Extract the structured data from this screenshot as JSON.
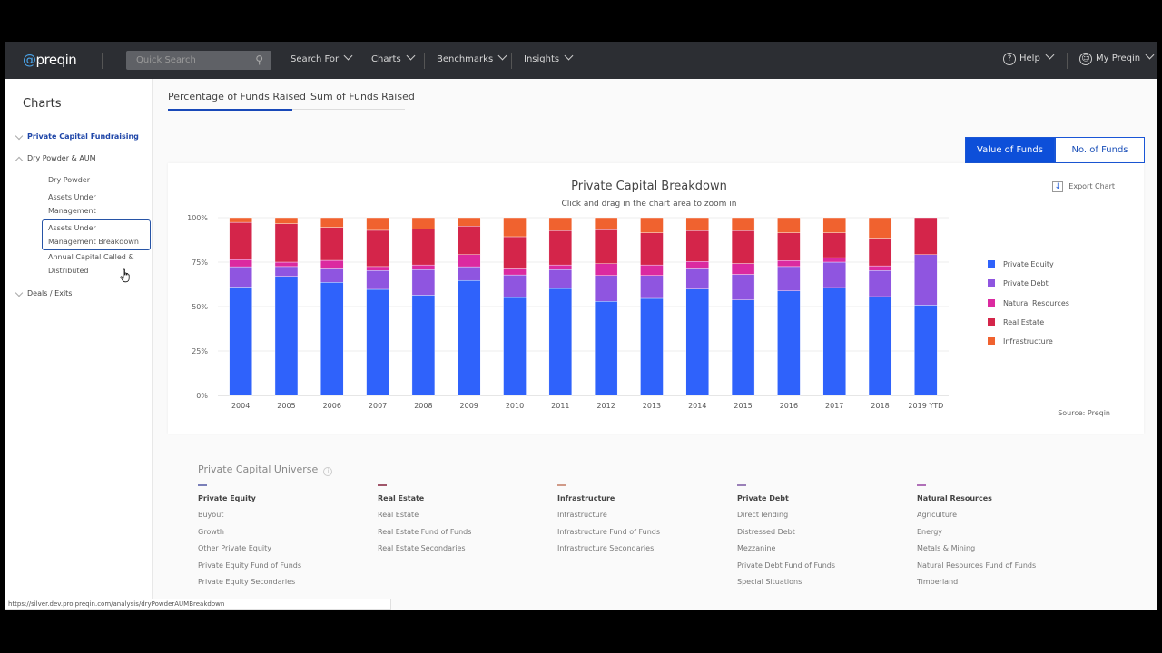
{
  "nav": {
    "logo": "preqin",
    "search_placeholder": "Quick Search",
    "items": [
      "Search For",
      "Charts",
      "Benchmarks",
      "Insights"
    ],
    "help": "Help",
    "account": "My Preqin"
  },
  "sidebar": {
    "title": "Charts",
    "groups": [
      {
        "label": "Private Capital Fundraising",
        "state": "collapsed",
        "active": true
      },
      {
        "label": "Dry Powder & AUM",
        "state": "expanded"
      },
      {
        "label": "Deals / Exits",
        "state": "collapsed"
      }
    ],
    "sub_items": [
      "Dry Powder",
      "Assets Under Management",
      "Assets Under Management Breakdown",
      "Annual Capital Called & Distributed"
    ],
    "selected": "Assets Under Management Breakdown"
  },
  "tabs": [
    "Percentage of Funds Raised",
    "Sum of Funds Raised"
  ],
  "toggle": {
    "on": "Value of Funds",
    "off": "No. of Funds"
  },
  "export": "Export Chart",
  "source": "Source: Preqin",
  "chart_data": {
    "type": "bar",
    "stacked": true,
    "title": "Private Capital Breakdown",
    "subtitle": "Click and drag in the chart area to zoom in",
    "categories": [
      "2004",
      "2005",
      "2006",
      "2007",
      "2008",
      "2009",
      "2010",
      "2011",
      "2012",
      "2013",
      "2014",
      "2015",
      "2016",
      "2017",
      "2018",
      "2019 YTD"
    ],
    "yticks": [
      "0%",
      "25%",
      "50%",
      "75%",
      "100%"
    ],
    "ylim": [
      0,
      100
    ],
    "grid": true,
    "legend": "right",
    "series": [
      {
        "name": "Private Equity",
        "color": "#2f62fb",
        "values": [
          61,
          67,
          63.6,
          59.7,
          56.4,
          64.7,
          55.1,
          60.2,
          52.9,
          54.6,
          59.8,
          53.7,
          58.8,
          60.7,
          55.6,
          50.8
        ]
      },
      {
        "name": "Private Debt",
        "color": "#8f55e0",
        "values": [
          11.4,
          5.5,
          7.6,
          10.6,
          14.4,
          7.7,
          12.7,
          10.6,
          14.6,
          12.9,
          11.4,
          14.4,
          13.7,
          14.3,
          14.7,
          28.4
        ]
      },
      {
        "name": "Natural Resources",
        "color": "#db2aa0",
        "values": [
          4,
          2.5,
          4.8,
          2.2,
          2.6,
          6.8,
          3.4,
          2.6,
          6.6,
          5.9,
          4.2,
          6.1,
          3.4,
          2.5,
          2.6,
          0
        ]
      },
      {
        "name": "Real Estate",
        "color": "#d4254a",
        "values": [
          21,
          21.6,
          18.6,
          20.4,
          20.2,
          16.1,
          18.1,
          19.3,
          19.1,
          18.1,
          17.3,
          18.5,
          15.6,
          14,
          15.6,
          20.8
        ]
      },
      {
        "name": "Infrastructure",
        "color": "#f0622f",
        "values": [
          2.6,
          3.4,
          5.4,
          7.1,
          6.4,
          4.7,
          10.7,
          7.3,
          6.8,
          8.5,
          7.3,
          7.3,
          8.5,
          8.5,
          11.5,
          0
        ]
      }
    ]
  },
  "universe": {
    "title": "Private Capital Universe",
    "columns": [
      {
        "heading": "Private Equity",
        "color": "#7a7fb8",
        "items": [
          "Buyout",
          "Growth",
          "Other Private Equity",
          "Private Equity Fund of Funds",
          "Private Equity Secondaries"
        ]
      },
      {
        "heading": "Real Estate",
        "color": "#a0566a",
        "items": [
          "Real Estate",
          "Real Estate Fund of Funds",
          "Real Estate Secondaries"
        ]
      },
      {
        "heading": "Infrastructure",
        "color": "#d09a88",
        "items": [
          "Infrastructure",
          "Infrastructure Fund of Funds",
          "Infrastructure Secondaries"
        ]
      },
      {
        "heading": "Private Debt",
        "color": "#9a80b8",
        "items": [
          "Direct lending",
          "Distressed Debt",
          "Mezzanine",
          "Private Debt Fund of Funds",
          "Special Situations"
        ]
      },
      {
        "heading": "Natural Resources",
        "color": "#b070b8",
        "items": [
          "Agriculture",
          "Energy",
          "Metals & Mining",
          "Natural Resources Fund of Funds",
          "Timberland"
        ]
      }
    ]
  },
  "status_url": "https://silver.dev.pro.preqin.com/analysis/dryPowderAUMBreakdown"
}
